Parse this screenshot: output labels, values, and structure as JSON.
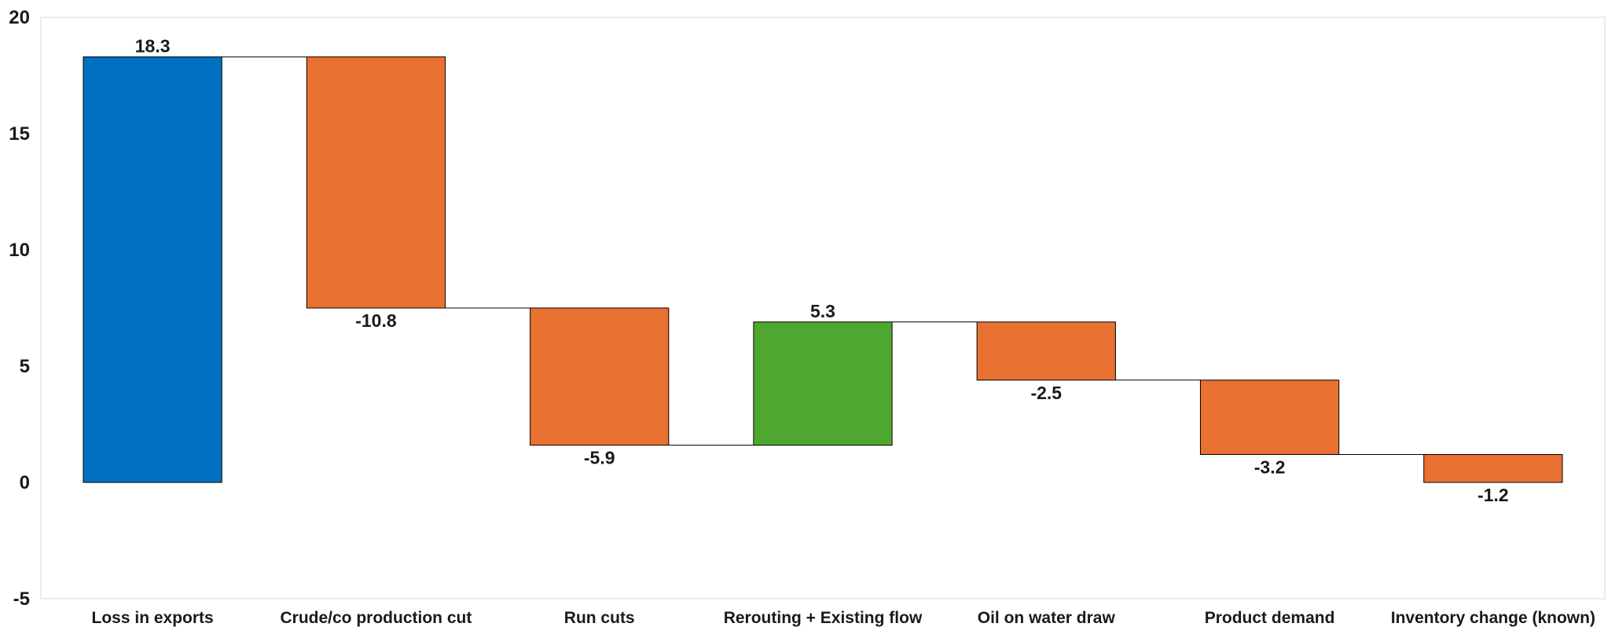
{
  "chart_data": {
    "type": "waterfall",
    "title": "",
    "xlabel": "",
    "ylabel": "",
    "ylim": [
      -5,
      20
    ],
    "yticks": [
      -5,
      0,
      5,
      10,
      15,
      20
    ],
    "grid": false,
    "legend": "none",
    "categories": [
      "Loss in exports",
      "Crude/co production cut",
      "Run cuts",
      "Rerouting + Existing flow",
      "Oil on water draw",
      "Product demand",
      "Inventory change (known)"
    ],
    "values": [
      18.3,
      -10.8,
      -5.9,
      5.3,
      -2.5,
      -3.2,
      -1.2
    ],
    "labels": [
      "18.3",
      "-10.8",
      "-5.9",
      "5.3",
      "-2.5",
      "-3.2",
      "-1.2"
    ],
    "colors": {
      "total": "#0070C0",
      "decrease": "#E97132",
      "increase": "#4EA72E"
    }
  }
}
